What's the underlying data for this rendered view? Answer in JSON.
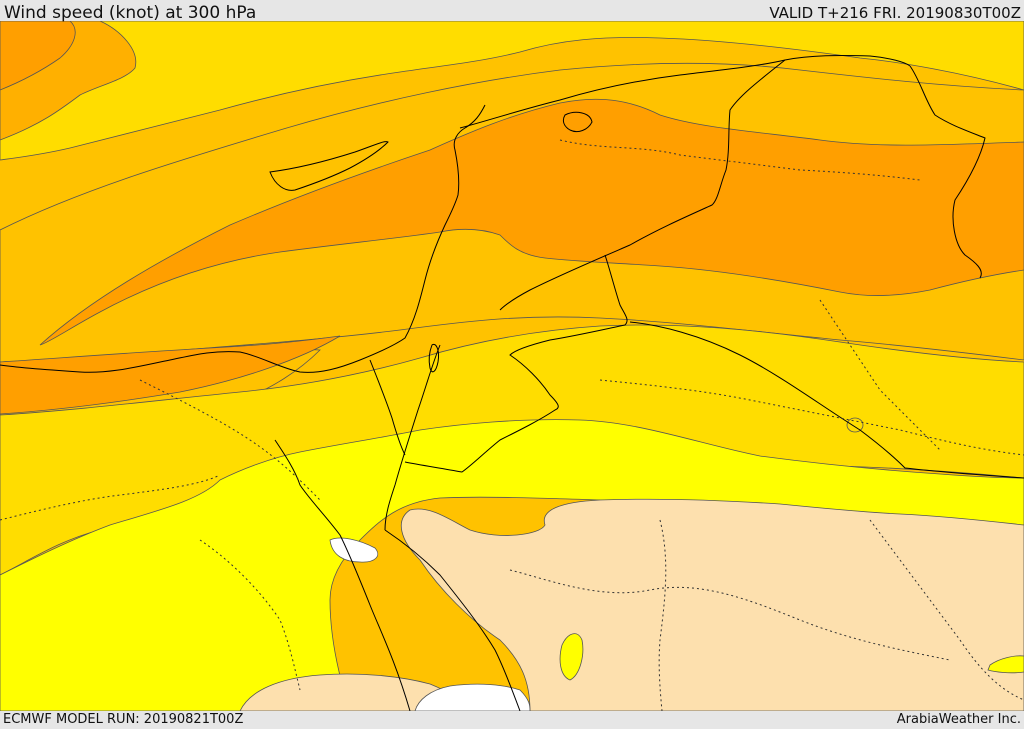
{
  "header": {
    "title": "Wind speed (knot) at 300 hPa",
    "valid_time": "VALID T+216 FRI. 20190830T00Z"
  },
  "footer": {
    "model_run": "ECMWF MODEL RUN: 20190821T00Z",
    "credit": "ArabiaWeather Inc."
  },
  "map": {
    "fill_colors": {
      "band_1": "#ffffff",
      "band_2": "#fde0ae",
      "band_3": "#ffff00",
      "band_4": "#ffdd00",
      "band_5": "#ffc200",
      "band_6": "#ff9f00"
    },
    "line_colors": {
      "coastline": "#000000",
      "border": "#000000",
      "contour": "#555555"
    }
  }
}
